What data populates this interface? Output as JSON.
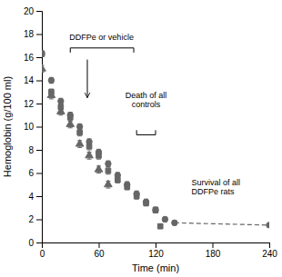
{
  "chart_data": {
    "type": "scatter",
    "xlabel": "Time (min)",
    "ylabel": "Hemoglobin (g/100 ml)",
    "xlim": [
      0,
      240
    ],
    "ylim": [
      0,
      20
    ],
    "xticks": [
      0,
      60,
      120,
      180,
      240
    ],
    "yticks": [
      0,
      2,
      4,
      6,
      8,
      10,
      12,
      14,
      16,
      18,
      20
    ],
    "series": [
      {
        "marker": "square",
        "color": "#666666",
        "x": [
          0,
          10,
          20,
          30,
          40,
          50,
          60,
          70,
          80,
          90,
          100,
          110,
          120,
          125
        ],
        "values": [
          16.3,
          13.0,
          11.7,
          10.8,
          9.5,
          8.3,
          7.5,
          6.2,
          5.4,
          4.8,
          4.0,
          3.4,
          2.8,
          1.4
        ],
        "errors": [
          0.25,
          0.25,
          0.25,
          0.3,
          0.3,
          0.3,
          0.3,
          0.3,
          0.25,
          0.25,
          0.25,
          0.25,
          0.25,
          0.2
        ]
      },
      {
        "marker": "triangle",
        "color": "#666666",
        "x": [
          0,
          10,
          20,
          30,
          40,
          50,
          60,
          70
        ],
        "values": [
          15.0,
          12.7,
          11.3,
          10.2,
          8.5,
          7.5,
          6.3,
          5.0
        ],
        "errors": [
          0.3,
          0.3,
          0.3,
          0.3,
          0.3,
          0.3,
          0.3,
          0.3
        ]
      },
      {
        "marker": "circle",
        "color": "#666666",
        "x": [
          0,
          10,
          20,
          30,
          40,
          50,
          60,
          70,
          80,
          90,
          100,
          110,
          120,
          130,
          140,
          240
        ],
        "values": [
          16.3,
          14.0,
          12.2,
          11.0,
          10.0,
          8.7,
          7.8,
          6.8,
          5.8,
          5.0,
          4.2,
          3.5,
          2.8,
          2.0,
          1.7,
          1.5
        ],
        "errors": [
          0.25,
          0.25,
          0.25,
          0.25,
          0.25,
          0.25,
          0.25,
          0.25,
          0.25,
          0.25,
          0.25,
          0.25,
          0.25,
          0.2,
          0.2,
          0.15
        ]
      },
      {
        "type": "line",
        "line_style": "dashed",
        "color": "#666666",
        "x": [
          140,
          240
        ],
        "values": [
          1.7,
          1.5
        ]
      }
    ],
    "annotations": [
      {
        "text": "DDFPe or vehicle",
        "x": 63,
        "y": 17.3,
        "align": "center",
        "bracket": {
          "x1": 30,
          "x2": 97,
          "y": 16.8,
          "tick": 0.4,
          "direction": "down"
        }
      },
      {
        "text": "Death of all\ncontrols",
        "x": 110,
        "y": 11.5,
        "align": "center",
        "bracket": {
          "x1": 100,
          "x2": 120,
          "y": 9.3,
          "tick": 0.4,
          "direction": "up"
        }
      },
      {
        "text": "Survival of all\nDDFPe rats",
        "x": 158,
        "y": 4.0,
        "align": "left"
      }
    ],
    "arrows": [
      {
        "x": 48,
        "y_start": 15.8,
        "y_end": 12.5
      }
    ]
  }
}
